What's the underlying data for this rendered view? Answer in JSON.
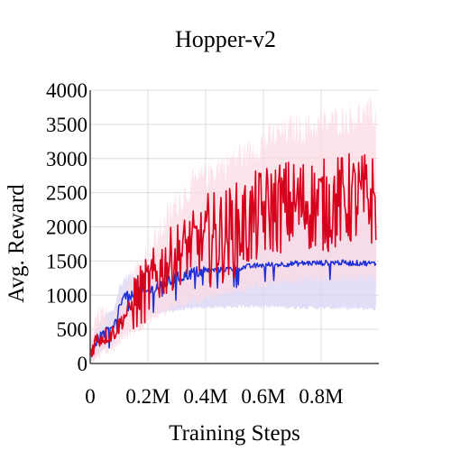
{
  "chart_data": {
    "type": "line",
    "title": "Hopper-v2",
    "xlabel": "Training Steps",
    "ylabel": "Avg. Reward",
    "xlim": [
      0,
      1000000
    ],
    "ylim": [
      0,
      4000
    ],
    "grid": true,
    "legend": "none",
    "x_ticks": [
      {
        "value": 0,
        "label": "0"
      },
      {
        "value": 200000,
        "label": "0.2M"
      },
      {
        "value": 400000,
        "label": "0.4M"
      },
      {
        "value": 600000,
        "label": "0.6M"
      },
      {
        "value": 800000,
        "label": "0.8M"
      }
    ],
    "y_ticks": [
      {
        "value": 0,
        "label": "0"
      },
      {
        "value": 500,
        "label": "500"
      },
      {
        "value": 1000,
        "label": "1000"
      },
      {
        "value": 1500,
        "label": "1500"
      },
      {
        "value": 2000,
        "label": "2000"
      },
      {
        "value": 2500,
        "label": "2500"
      },
      {
        "value": 3000,
        "label": "3000"
      },
      {
        "value": 3500,
        "label": "3500"
      },
      {
        "value": 4000,
        "label": "4000"
      }
    ],
    "x_end": 990000,
    "series": [
      {
        "color": "#1f2fd6",
        "band_color": "#d9d3f5",
        "x": [
          0,
          20000,
          40000,
          60000,
          80000,
          100000,
          120000,
          150000,
          200000,
          250000,
          300000,
          350000,
          400000,
          450000,
          500000,
          550000,
          600000,
          650000,
          700000,
          750000,
          800000,
          850000,
          900000,
          950000,
          990000
        ],
        "values": [
          100,
          300,
          420,
          470,
          500,
          820,
          980,
          1000,
          1050,
          1150,
          1250,
          1320,
          1360,
          1370,
          1390,
          1420,
          1440,
          1450,
          1460,
          1470,
          1470,
          1480,
          1470,
          1470,
          1460
        ],
        "upper": [
          250,
          520,
          650,
          720,
          760,
          1100,
          1250,
          1300,
          1350,
          1550,
          1700,
          1850,
          1950,
          2000,
          2050,
          2100,
          2150,
          2150,
          2200,
          2200,
          2200,
          2250,
          2200,
          2250,
          2200
        ],
        "lower": [
          0,
          100,
          200,
          250,
          300,
          500,
          650,
          700,
          720,
          750,
          780,
          800,
          820,
          820,
          830,
          840,
          830,
          830,
          820,
          820,
          810,
          810,
          800,
          800,
          800
        ]
      },
      {
        "color": "#d6001c",
        "band_color": "#fbdbe3",
        "x": [
          0,
          20000,
          40000,
          60000,
          80000,
          100000,
          120000,
          150000,
          200000,
          250000,
          300000,
          350000,
          400000,
          450000,
          500000,
          550000,
          600000,
          650000,
          700000,
          750000,
          800000,
          850000,
          900000,
          950000,
          990000
        ],
        "values": [
          150,
          350,
          380,
          420,
          450,
          560,
          700,
          880,
          1100,
          1400,
          1600,
          1750,
          1800,
          1850,
          1950,
          2050,
          2200,
          2300,
          2300,
          2350,
          2300,
          2350,
          2400,
          2400,
          2400
        ],
        "upper": [
          300,
          600,
          620,
          680,
          720,
          860,
          1050,
          1300,
          1600,
          2000,
          2350,
          2600,
          2750,
          2900,
          3000,
          3100,
          3250,
          3350,
          3450,
          3450,
          3500,
          3550,
          3600,
          3650,
          3650
        ],
        "lower": [
          0,
          100,
          150,
          200,
          220,
          300,
          380,
          480,
          620,
          750,
          850,
          900,
          950,
          1000,
          1050,
          1100,
          1150,
          1200,
          1200,
          1250,
          1250,
          1250,
          1250,
          1250,
          1250
        ]
      }
    ]
  }
}
